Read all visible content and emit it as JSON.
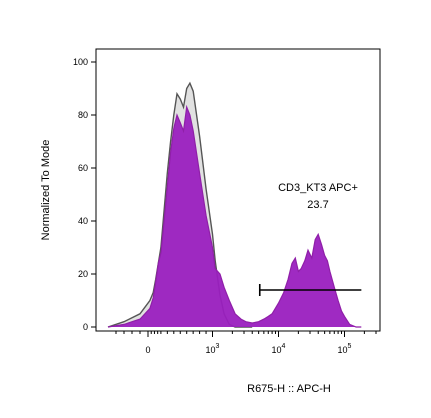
{
  "chart_data": {
    "type": "area",
    "title": "",
    "xlabel": "R675-H :: APC-H",
    "ylabel": "Normalized To Mode",
    "x_scale": "biexponential",
    "ylim": [
      0,
      100
    ],
    "grid": false,
    "y_ticks": [
      "0",
      "20",
      "40",
      "60",
      "80",
      "100"
    ],
    "x_ticks": [
      {
        "label": "0",
        "value": 0
      },
      {
        "label": "10",
        "sup": "3",
        "value": 1000
      },
      {
        "label": "10",
        "sup": "4",
        "value": 10000
      },
      {
        "label": "10",
        "sup": "5",
        "value": 100000
      }
    ],
    "series": [
      {
        "color": "#8f1fa8",
        "fill": "#9a1fbf",
        "x": [
          -250,
          -150,
          -50,
          30,
          80,
          120,
          160,
          200,
          250,
          300,
          350,
          400,
          450,
          500,
          550,
          600,
          650,
          700,
          800,
          900,
          1000,
          1100,
          1300,
          1500,
          1800,
          2200,
          2700,
          3200,
          4000,
          5000,
          6000,
          7000,
          8000,
          10000,
          12000,
          14000,
          16000,
          18000,
          20000,
          22000,
          25000,
          28000,
          32000,
          36000,
          40000,
          45000,
          50000,
          55000,
          60000,
          70000,
          80000,
          90000,
          100000,
          120000,
          150000,
          180000
        ],
        "values": [
          0,
          1,
          3,
          7,
          11,
          17,
          24,
          28,
          40,
          53,
          66,
          75,
          80,
          77,
          74,
          83,
          80,
          74,
          58,
          42,
          30,
          22,
          20,
          15,
          10,
          5,
          3,
          2,
          1.5,
          2,
          3,
          4,
          5,
          9,
          13,
          18,
          24,
          26,
          21,
          22,
          25,
          29,
          26,
          33,
          35,
          31,
          27,
          25,
          21,
          15,
          10,
          6,
          4,
          1,
          0,
          0
        ]
      },
      {
        "color": "#555555",
        "fill": "#c8c8c8",
        "x": [
          -250,
          -150,
          -50,
          30,
          80,
          120,
          160,
          200,
          250,
          300,
          350,
          400,
          450,
          500,
          550,
          600,
          650,
          700,
          800,
          900,
          1000,
          1100,
          1300,
          1500,
          1800,
          2200,
          2700,
          3200,
          4000
        ],
        "values": [
          0,
          2,
          5,
          10,
          13,
          18,
          24,
          30,
          44,
          58,
          70,
          80,
          88,
          86,
          83,
          90,
          92,
          89,
          72,
          52,
          35,
          25,
          12,
          5,
          1,
          0,
          0,
          0,
          0
        ]
      }
    ],
    "gates": [
      {
        "name": "CD3_KT3 APC+",
        "value": "23.7",
        "x_min": 5200,
        "x_max": 180000,
        "y": 14
      }
    ]
  }
}
